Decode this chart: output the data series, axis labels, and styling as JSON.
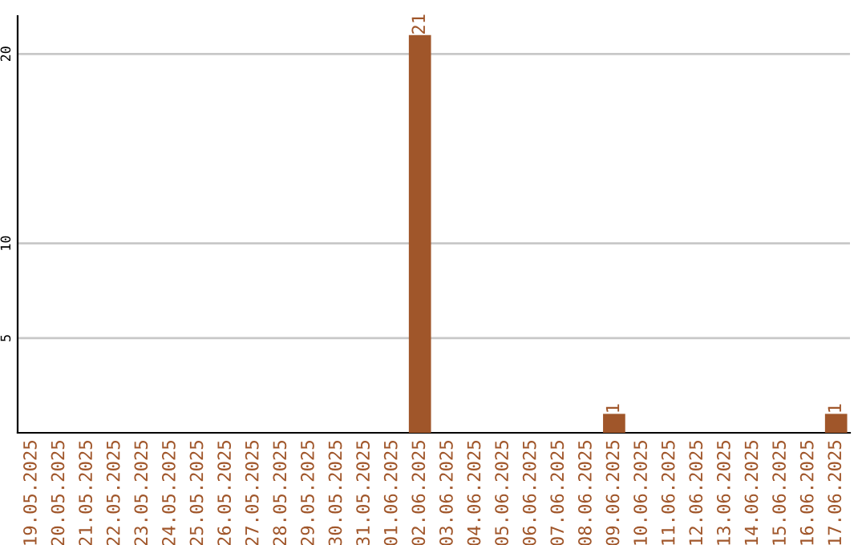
{
  "chart_data": {
    "type": "bar",
    "categories": [
      "19.05.2025",
      "20.05.2025",
      "21.05.2025",
      "22.05.2025",
      "23.05.2025",
      "24.05.2025",
      "25.05.2025",
      "26.05.2025",
      "27.05.2025",
      "28.05.2025",
      "29.05.2025",
      "30.05.2025",
      "31.05.2025",
      "01.06.2025",
      "02.06.2025",
      "03.06.2025",
      "04.06.2025",
      "05.06.2025",
      "06.06.2025",
      "07.06.2025",
      "08.06.2025",
      "09.06.2025",
      "10.06.2025",
      "11.06.2025",
      "12.06.2025",
      "13.06.2025",
      "14.06.2025",
      "15.06.2025",
      "16.06.2025",
      "17.06.2025"
    ],
    "values": [
      0,
      0,
      0,
      0,
      0,
      0,
      0,
      0,
      0,
      0,
      0,
      0,
      0,
      0,
      21,
      0,
      0,
      0,
      0,
      0,
      0,
      1,
      0,
      0,
      0,
      0,
      0,
      0,
      0,
      1
    ],
    "value_labels": [
      null,
      null,
      null,
      null,
      null,
      null,
      null,
      null,
      null,
      null,
      null,
      null,
      null,
      null,
      "21",
      null,
      null,
      null,
      null,
      null,
      null,
      "1",
      null,
      null,
      null,
      null,
      null,
      null,
      null,
      "1"
    ],
    "color": "#a0562a",
    "ylim": [
      0,
      22
    ],
    "yticks": [
      5,
      10,
      20
    ],
    "grid": "y",
    "legend": false
  }
}
